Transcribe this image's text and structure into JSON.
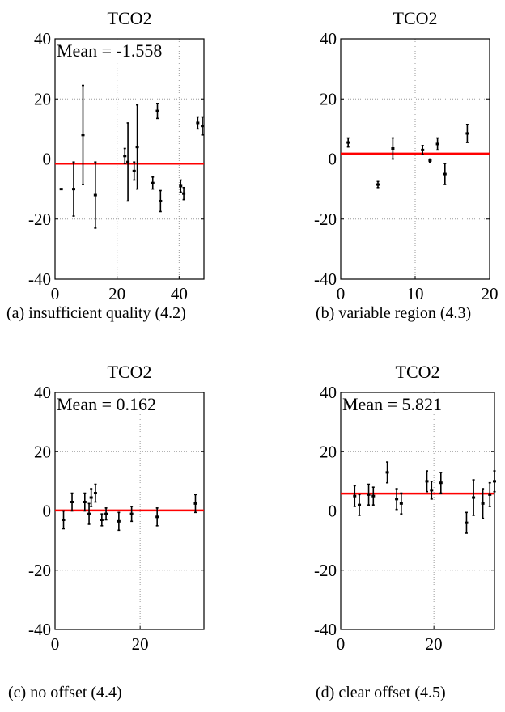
{
  "colors": {
    "axis": "#000000",
    "grid": "#9a9a9a",
    "points": "#000000",
    "mean_line": "#ff0000",
    "background": "#ffffff"
  },
  "chart_data": [
    {
      "type": "scatter",
      "title": "TCO2",
      "mean_label": "Mean = -1.558",
      "caption": "(a) insufficient quality (4.2)",
      "xlim": [
        0,
        48
      ],
      "ylim": [
        -40,
        40
      ],
      "xticks": [
        0,
        20,
        40
      ],
      "yticks": [
        40,
        20,
        0,
        -20,
        -40
      ],
      "grid": true,
      "mean": -1.558,
      "points": [
        {
          "x": 2,
          "y": -10,
          "err": 0
        },
        {
          "x": 6,
          "y": -10,
          "err": 9
        },
        {
          "x": 9,
          "y": 8,
          "err": 16.5
        },
        {
          "x": 13,
          "y": -12,
          "err": 11
        },
        {
          "x": 22.5,
          "y": 1,
          "err": 2.5
        },
        {
          "x": 23.5,
          "y": -1,
          "err": 13
        },
        {
          "x": 25.5,
          "y": -4,
          "err": 3
        },
        {
          "x": 26.5,
          "y": 4,
          "err": 14
        },
        {
          "x": 31.5,
          "y": -8,
          "err": 2
        },
        {
          "x": 33,
          "y": 16,
          "err": 2.5
        },
        {
          "x": 34,
          "y": -14,
          "err": 3.5
        },
        {
          "x": 40.5,
          "y": -9,
          "err": 2
        },
        {
          "x": 41.5,
          "y": -11.5,
          "err": 2
        },
        {
          "x": 46,
          "y": 12,
          "err": 2
        },
        {
          "x": 47.5,
          "y": 11,
          "err": 3
        }
      ]
    },
    {
      "type": "scatter",
      "title": "TCO2",
      "mean_label": "",
      "caption": "(b) variable region (4.3)",
      "xlim": [
        0,
        20
      ],
      "ylim": [
        -40,
        40
      ],
      "xticks": [
        0,
        10,
        20
      ],
      "yticks": [
        40,
        20,
        0,
        -20,
        -40
      ],
      "grid": true,
      "mean": 1.8,
      "points": [
        {
          "x": 1,
          "y": 5.5,
          "err": 1.5
        },
        {
          "x": 5,
          "y": -8.5,
          "err": 1
        },
        {
          "x": 7,
          "y": 3.5,
          "err": 3.5
        },
        {
          "x": 11,
          "y": 3,
          "err": 1.5
        },
        {
          "x": 12,
          "y": -0.5,
          "err": 0.5
        },
        {
          "x": 13,
          "y": 5,
          "err": 2
        },
        {
          "x": 14,
          "y": -5,
          "err": 3.5
        },
        {
          "x": 17,
          "y": 8.5,
          "err": 3
        }
      ]
    },
    {
      "type": "scatter",
      "title": "TCO2",
      "mean_label": "Mean = 0.162",
      "caption": "(c) no offset (4.4)",
      "xlim": [
        0,
        35
      ],
      "ylim": [
        -40,
        40
      ],
      "xticks": [
        0,
        20
      ],
      "yticks": [
        40,
        20,
        0,
        -20,
        -40
      ],
      "grid": true,
      "mean": 0.162,
      "points": [
        {
          "x": 2,
          "y": -3,
          "err": 3
        },
        {
          "x": 4,
          "y": 3,
          "err": 3
        },
        {
          "x": 7,
          "y": 3,
          "err": 3
        },
        {
          "x": 8,
          "y": -1,
          "err": 3.5
        },
        {
          "x": 8.5,
          "y": 4.5,
          "err": 3
        },
        {
          "x": 9.5,
          "y": 6,
          "err": 3
        },
        {
          "x": 11,
          "y": -3,
          "err": 2
        },
        {
          "x": 12,
          "y": -1,
          "err": 2
        },
        {
          "x": 15,
          "y": -3.5,
          "err": 3
        },
        {
          "x": 18,
          "y": -1,
          "err": 2.5
        },
        {
          "x": 24,
          "y": -2,
          "err": 3
        },
        {
          "x": 33,
          "y": 2.5,
          "err": 3
        }
      ]
    },
    {
      "type": "scatter",
      "title": "TCO2",
      "mean_label": "Mean = 5.821",
      "caption": "(d) clear offset (4.5)",
      "xlim": [
        0,
        33
      ],
      "ylim": [
        -40,
        40
      ],
      "xticks": [
        0,
        20
      ],
      "yticks": [
        40,
        20,
        0,
        -20,
        -40
      ],
      "grid": true,
      "mean": 5.821,
      "points": [
        {
          "x": 3,
          "y": 5,
          "err": 3.5
        },
        {
          "x": 4,
          "y": 2,
          "err": 3.5
        },
        {
          "x": 6,
          "y": 5.5,
          "err": 3.5
        },
        {
          "x": 7,
          "y": 5,
          "err": 3
        },
        {
          "x": 10,
          "y": 13,
          "err": 3.5
        },
        {
          "x": 12,
          "y": 4,
          "err": 3.5
        },
        {
          "x": 13,
          "y": 2.5,
          "err": 3.5
        },
        {
          "x": 18.5,
          "y": 10,
          "err": 3.5
        },
        {
          "x": 19.5,
          "y": 7,
          "err": 3
        },
        {
          "x": 21.5,
          "y": 9.5,
          "err": 3.5
        },
        {
          "x": 27,
          "y": -4,
          "err": 3.5
        },
        {
          "x": 28.5,
          "y": 4.5,
          "err": 6
        },
        {
          "x": 30.5,
          "y": 2.5,
          "err": 5
        },
        {
          "x": 32,
          "y": 5.5,
          "err": 4
        },
        {
          "x": 33,
          "y": 10,
          "err": 3.5
        }
      ]
    }
  ]
}
